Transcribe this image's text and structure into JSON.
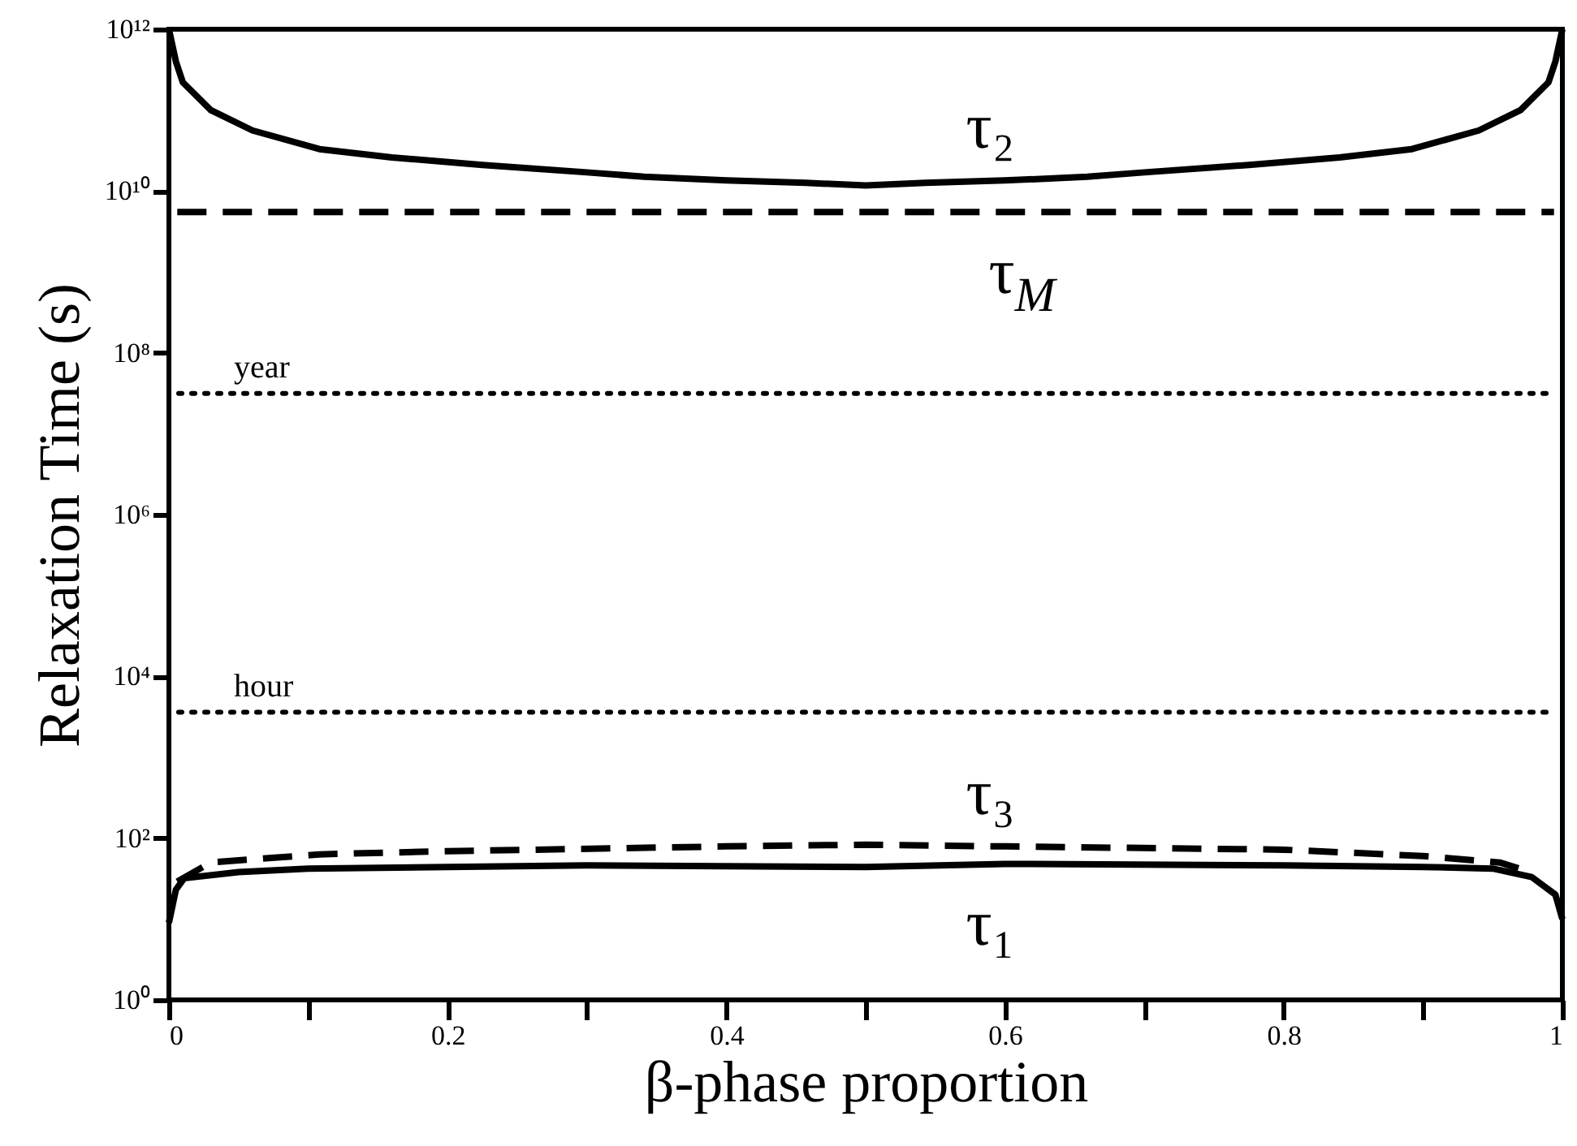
{
  "chart_data": {
    "type": "line",
    "xlabel": "β-phase proportion",
    "ylabel": "Relaxation Time (s)",
    "xlim": [
      0,
      1
    ],
    "ylim": [
      1,
      1000000000000.0
    ],
    "log": "y",
    "grid": false,
    "legend": false,
    "marker": "none",
    "xticks": [
      0,
      {
        "value": 0.1,
        "label": null
      },
      0.2,
      {
        "value": 0.3,
        "label": null
      },
      0.4,
      {
        "value": 0.5,
        "label": null
      },
      0.6,
      {
        "value": 0.7,
        "label": null
      },
      0.8,
      {
        "value": 0.9,
        "label": null
      },
      1
    ],
    "yticks": [
      {
        "value": 1,
        "label": "10⁰"
      },
      {
        "value": 100,
        "label": "10²"
      },
      {
        "value": 10000,
        "label": "10⁴"
      },
      {
        "value": 1000000,
        "label": "10⁶"
      },
      {
        "value": 100000000,
        "label": "10⁸"
      },
      {
        "value": 10000000000,
        "label": "10¹⁰"
      },
      {
        "value": 1000000000000,
        "label": "10¹²"
      }
    ],
    "series": [
      {
        "name": "τ₂",
        "color": "#000000",
        "line_style": "solid",
        "x": [
          0,
          0.005,
          0.01,
          0.03,
          0.06,
          0.108,
          0.16,
          0.225,
          0.3,
          0.341,
          0.4,
          0.457,
          0.5,
          0.543,
          0.6,
          0.659,
          0.7,
          0.775,
          0.84,
          0.892,
          0.94,
          0.97,
          0.99,
          0.995,
          1
        ],
        "values": [
          1000000000000.0,
          400000000000.0,
          220000000000.0,
          100000000000.0,
          56000000000.0,
          33000000000.0,
          26000000000.0,
          21000000000.0,
          17000000000.0,
          15000000000.0,
          13500000000.0,
          12600000000.0,
          11700000000.0,
          12600000000.0,
          13500000000.0,
          15000000000.0,
          17000000000.0,
          21000000000.0,
          26000000000.0,
          33000000000.0,
          56000000000.0,
          100000000000.0,
          220000000000.0,
          400000000000.0,
          1000000000000.0
        ]
      },
      {
        "name": "τ$_{M}$",
        "color": "#000000",
        "line_style": "dashed",
        "x": [
          0.006,
          0.994
        ],
        "values": [
          5500000000.0,
          5500000000.0
        ]
      },
      {
        "name": "τ₃",
        "color": "#000000",
        "line_style": "dashed",
        "x": [
          0.006,
          0.03,
          0.108,
          0.2,
          0.4,
          0.5,
          0.6,
          0.8,
          0.9,
          0.955,
          0.973
        ],
        "values": [
          29,
          50,
          63,
          69,
          79,
          83,
          79,
          72,
          60,
          50,
          40
        ]
      },
      {
        "name": "τ₁",
        "color": "#000000",
        "line_style": "solid",
        "x": [
          0,
          0.005,
          0.011,
          0.05,
          0.1,
          0.2,
          0.3,
          0.5,
          0.6,
          0.8,
          0.9,
          0.95,
          0.978,
          0.995,
          1
        ],
        "values": [
          9,
          23,
          32,
          38,
          42,
          44,
          46,
          44,
          48,
          46,
          44,
          42,
          33,
          20,
          10
        ]
      }
    ],
    "ref_lines": [
      {
        "axis": "y",
        "value": 31500000,
        "label": "year",
        "line_style": "dotted",
        "color": "#000000"
      },
      {
        "axis": "y",
        "value": 3600,
        "label": "hour",
        "line_style": "dotted",
        "color": "#000000"
      }
    ]
  }
}
